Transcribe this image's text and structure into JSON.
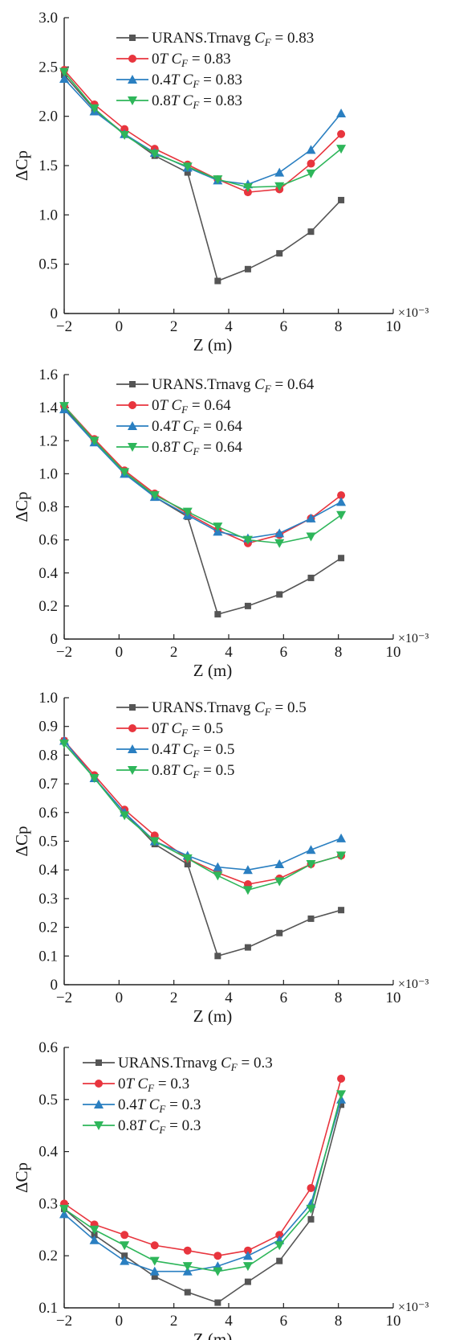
{
  "chart_data": [
    {
      "type": "line",
      "xlabel": "Z (m)",
      "ylabel": "ΔCp",
      "x_multiplier": "×10⁻³",
      "xlim": [
        -2,
        10
      ],
      "ylim": [
        0,
        3.0
      ],
      "xticks": [
        "−2",
        "0",
        "2",
        "4",
        "6",
        "8",
        "10"
      ],
      "yticks": [
        "0",
        "0.5",
        "1.0",
        "1.5",
        "2.0",
        "2.5",
        "3.0"
      ],
      "legend_position": "top-right",
      "x": [
        -2,
        -0.9,
        0.2,
        1.3,
        2.5,
        3.6,
        4.7,
        5.85,
        7.0,
        8.1
      ],
      "series": [
        {
          "name": "URANS.Trnavg CF = 0.83",
          "label_prefix": "URANS.Trnavg",
          "cf": "0.83",
          "color": "#555555",
          "marker": "square",
          "values": [
            2.42,
            2.07,
            1.82,
            1.6,
            1.43,
            0.33,
            0.45,
            0.61,
            0.83,
            1.15
          ]
        },
        {
          "name": "0T CF = 0.83",
          "label_prefix": "0T",
          "cf": "0.83",
          "color": "#e8353e",
          "marker": "circle",
          "values": [
            2.47,
            2.12,
            1.87,
            1.67,
            1.51,
            1.36,
            1.23,
            1.26,
            1.52,
            1.82
          ]
        },
        {
          "name": "0.4T CF = 0.83",
          "label_prefix": "0.4T",
          "cf": "0.83",
          "color": "#2a7fc1",
          "marker": "triangle-up",
          "values": [
            2.38,
            2.05,
            1.82,
            1.63,
            1.48,
            1.35,
            1.31,
            1.43,
            1.66,
            2.03
          ]
        },
        {
          "name": "0.8T CF = 0.83",
          "label_prefix": "0.8T",
          "cf": "0.83",
          "color": "#2eb65a",
          "marker": "triangle-down",
          "values": [
            2.45,
            2.08,
            1.81,
            1.62,
            1.49,
            1.36,
            1.28,
            1.29,
            1.42,
            1.67
          ]
        }
      ]
    },
    {
      "type": "line",
      "xlabel": "Z (m)",
      "ylabel": "ΔCp",
      "x_multiplier": "×10⁻³",
      "xlim": [
        -2,
        10
      ],
      "ylim": [
        0,
        1.6
      ],
      "xticks": [
        "−2",
        "0",
        "2",
        "4",
        "6",
        "8",
        "10"
      ],
      "yticks": [
        "0",
        "0.2",
        "0.4",
        "0.6",
        "0.8",
        "1.0",
        "1.2",
        "1.4",
        "1.6"
      ],
      "legend_position": "top-right",
      "x": [
        -2,
        -0.9,
        0.2,
        1.3,
        2.5,
        3.6,
        4.7,
        5.85,
        7.0,
        8.1
      ],
      "series": [
        {
          "name": "URANS.Trnavg CF = 0.64",
          "label_prefix": "URANS.Trnavg",
          "cf": "0.64",
          "color": "#555555",
          "marker": "square",
          "values": [
            1.4,
            1.2,
            1.01,
            0.86,
            0.74,
            0.15,
            0.2,
            0.27,
            0.37,
            0.49
          ]
        },
        {
          "name": "0T CF = 0.64",
          "label_prefix": "0T",
          "cf": "0.64",
          "color": "#e8353e",
          "marker": "circle",
          "values": [
            1.41,
            1.21,
            1.02,
            0.88,
            0.76,
            0.66,
            0.58,
            0.63,
            0.73,
            0.87
          ]
        },
        {
          "name": "0.4T CF = 0.64",
          "label_prefix": "0.4T",
          "cf": "0.64",
          "color": "#2a7fc1",
          "marker": "triangle-up",
          "values": [
            1.39,
            1.19,
            1.0,
            0.86,
            0.75,
            0.65,
            0.61,
            0.64,
            0.73,
            0.83
          ]
        },
        {
          "name": "0.8T CF = 0.64",
          "label_prefix": "0.8T",
          "cf": "0.64",
          "color": "#2eb65a",
          "marker": "triangle-down",
          "values": [
            1.41,
            1.2,
            1.01,
            0.87,
            0.77,
            0.68,
            0.6,
            0.58,
            0.62,
            0.75
          ]
        }
      ]
    },
    {
      "type": "line",
      "xlabel": "Z (m)",
      "ylabel": "ΔCp",
      "x_multiplier": "×10⁻³",
      "xlim": [
        -2,
        10
      ],
      "ylim": [
        0,
        1.0
      ],
      "xticks": [
        "−2",
        "0",
        "2",
        "4",
        "6",
        "8",
        "10"
      ],
      "yticks": [
        "0",
        "0.1",
        "0.2",
        "0.3",
        "0.4",
        "0.5",
        "0.6",
        "0.7",
        "0.8",
        "0.9",
        "1.0"
      ],
      "legend_position": "top-right",
      "x": [
        -2,
        -0.9,
        0.2,
        1.3,
        2.5,
        3.6,
        4.7,
        5.85,
        7.0,
        8.1
      ],
      "series": [
        {
          "name": "URANS.Trnavg CF = 0.5",
          "label_prefix": "URANS.Trnavg",
          "cf": "0.5",
          "color": "#555555",
          "marker": "square",
          "values": [
            0.85,
            0.72,
            0.6,
            0.49,
            0.42,
            0.1,
            0.13,
            0.18,
            0.23,
            0.26
          ]
        },
        {
          "name": "0T CF = 0.5",
          "label_prefix": "0T",
          "cf": "0.5",
          "color": "#e8353e",
          "marker": "circle",
          "values": [
            0.85,
            0.73,
            0.61,
            0.52,
            0.44,
            0.39,
            0.35,
            0.37,
            0.42,
            0.45
          ]
        },
        {
          "name": "0.4T CF = 0.5",
          "label_prefix": "0.4T",
          "cf": "0.5",
          "color": "#2a7fc1",
          "marker": "triangle-up",
          "values": [
            0.85,
            0.72,
            0.6,
            0.5,
            0.45,
            0.41,
            0.4,
            0.42,
            0.47,
            0.51
          ]
        },
        {
          "name": "0.8T CF = 0.5",
          "label_prefix": "0.8T",
          "cf": "0.5",
          "color": "#2eb65a",
          "marker": "triangle-down",
          "values": [
            0.84,
            0.72,
            0.59,
            0.5,
            0.44,
            0.38,
            0.33,
            0.36,
            0.42,
            0.45
          ]
        }
      ]
    },
    {
      "type": "line",
      "xlabel": "Z (m)",
      "ylabel": "ΔCp",
      "x_multiplier": "×10⁻³",
      "xlim": [
        -2,
        10
      ],
      "ylim": [
        0.1,
        0.6
      ],
      "xticks": [
        "−2",
        "0",
        "2",
        "4",
        "6",
        "8",
        "10"
      ],
      "yticks": [
        "0.1",
        "0.2",
        "0.3",
        "0.4",
        "0.5",
        "0.6"
      ],
      "legend_position": "top-right",
      "x": [
        -2,
        -0.9,
        0.2,
        1.3,
        2.5,
        3.6,
        4.7,
        5.85,
        7.0,
        8.1
      ],
      "series": [
        {
          "name": "URANS.Trnavg CF = 0.3",
          "label_prefix": "URANS.Trnavg",
          "cf": "0.3",
          "color": "#555555",
          "marker": "square",
          "values": [
            0.29,
            0.24,
            0.2,
            0.16,
            0.13,
            0.11,
            0.15,
            0.19,
            0.27,
            0.49
          ]
        },
        {
          "name": "0T CF = 0.3",
          "label_prefix": "0T",
          "cf": "0.3",
          "color": "#e8353e",
          "marker": "circle",
          "values": [
            0.3,
            0.26,
            0.24,
            0.22,
            0.21,
            0.2,
            0.21,
            0.24,
            0.33,
            0.54
          ]
        },
        {
          "name": "0.4T CF = 0.3",
          "label_prefix": "0.4T",
          "cf": "0.3",
          "color": "#2a7fc1",
          "marker": "triangle-up",
          "values": [
            0.28,
            0.23,
            0.19,
            0.17,
            0.17,
            0.18,
            0.2,
            0.23,
            0.3,
            0.5
          ]
        },
        {
          "name": "0.8T CF = 0.3",
          "label_prefix": "0.8T",
          "cf": "0.3",
          "color": "#2eb65a",
          "marker": "triangle-down",
          "values": [
            0.29,
            0.25,
            0.22,
            0.19,
            0.18,
            0.17,
            0.18,
            0.22,
            0.29,
            0.51
          ]
        }
      ]
    }
  ]
}
